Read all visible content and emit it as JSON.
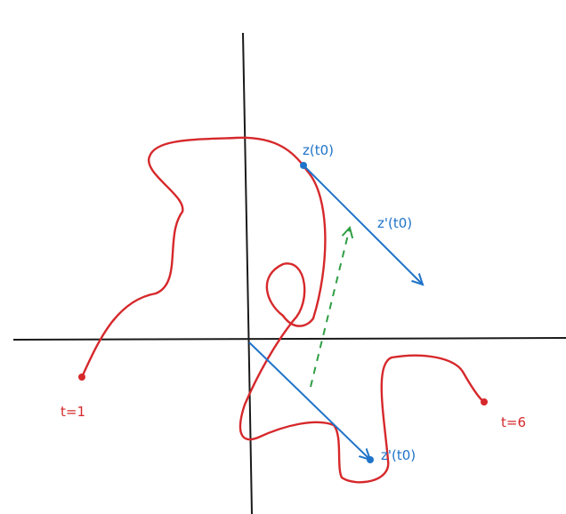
{
  "colors": {
    "axis": "#1a1a1a",
    "curve": "#d6282b",
    "vector": "#1f73c9",
    "dashed": "#2f9e44",
    "background": "#ffffff"
  },
  "labels": {
    "point_label": "z(t0)",
    "tangent_label": "z'(t0)",
    "translated_label": "z'(t0)",
    "start_label": "t=1",
    "end_label": "t=6"
  }
}
